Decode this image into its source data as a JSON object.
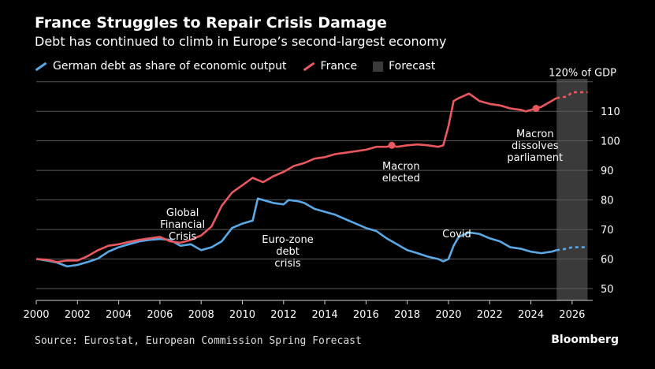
{
  "colors": {
    "background": "#000000",
    "germany": "#5aa9e6",
    "france": "#e8585e",
    "forecast": "#3a3a3a",
    "grid": "#5a5a5a",
    "text": "#ffffff"
  },
  "brand": "Bloomberg",
  "source": "Source: Eurostat, European Commission Spring Forecast",
  "chart_data": {
    "type": "line",
    "title": "France Struggles to Repair Crisis Damage",
    "subtitle": "Debt has continued to climb in Europe’s second-largest economy",
    "xlabel": "",
    "ylabel": "",
    "xlim": [
      2000,
      2027
    ],
    "ylim": [
      46,
      121
    ],
    "y_ticks": [
      50,
      60,
      70,
      80,
      90,
      100,
      110
    ],
    "x_ticks": [
      2000,
      2002,
      2004,
      2006,
      2008,
      2010,
      2012,
      2014,
      2016,
      2018,
      2020,
      2022,
      2024,
      2026
    ],
    "y_reference": {
      "value": 120,
      "label": "120% of GDP"
    },
    "grid": true,
    "legend_position": "top-left",
    "forecast_region": {
      "label": "Forecast",
      "start": 2025.25,
      "end": 2026.75
    },
    "series": [
      {
        "name": "German debt as share of economic output",
        "color_key": "germany",
        "values": [
          [
            2000.0,
            60.0
          ],
          [
            2000.5,
            59.5
          ],
          [
            2001.0,
            58.8
          ],
          [
            2001.5,
            57.5
          ],
          [
            2002.0,
            58.0
          ],
          [
            2002.5,
            59.0
          ],
          [
            2003.0,
            60.2
          ],
          [
            2003.5,
            62.5
          ],
          [
            2004.0,
            64.0
          ],
          [
            2004.5,
            65.0
          ],
          [
            2005.0,
            66.0
          ],
          [
            2005.5,
            66.5
          ],
          [
            2006.0,
            66.8
          ],
          [
            2006.5,
            66.5
          ],
          [
            2007.0,
            64.5
          ],
          [
            2007.5,
            65.0
          ],
          [
            2008.0,
            63.0
          ],
          [
            2008.5,
            64.0
          ],
          [
            2009.0,
            66.0
          ],
          [
            2009.5,
            70.5
          ],
          [
            2010.0,
            72.0
          ],
          [
            2010.5,
            73.0
          ],
          [
            2010.75,
            80.5
          ],
          [
            2011.0,
            80.0
          ],
          [
            2011.5,
            79.0
          ],
          [
            2012.0,
            78.5
          ],
          [
            2012.25,
            80.0
          ],
          [
            2012.75,
            79.5
          ],
          [
            2013.0,
            79.0
          ],
          [
            2013.5,
            77.0
          ],
          [
            2014.0,
            76.0
          ],
          [
            2014.5,
            75.0
          ],
          [
            2015.0,
            73.5
          ],
          [
            2015.5,
            72.0
          ],
          [
            2016.0,
            70.5
          ],
          [
            2016.5,
            69.5
          ],
          [
            2017.0,
            67.0
          ],
          [
            2017.5,
            65.0
          ],
          [
            2018.0,
            63.0
          ],
          [
            2018.5,
            62.0
          ],
          [
            2019.0,
            60.8
          ],
          [
            2019.5,
            60.0
          ],
          [
            2019.75,
            59.2
          ],
          [
            2020.0,
            60.0
          ],
          [
            2020.25,
            64.5
          ],
          [
            2020.5,
            67.5
          ],
          [
            2021.0,
            69.0
          ],
          [
            2021.5,
            68.5
          ],
          [
            2022.0,
            67.0
          ],
          [
            2022.5,
            66.0
          ],
          [
            2023.0,
            64.0
          ],
          [
            2023.5,
            63.5
          ],
          [
            2024.0,
            62.5
          ],
          [
            2024.5,
            62.0
          ],
          [
            2025.0,
            62.5
          ],
          [
            2025.25,
            63.0
          ]
        ],
        "forecast": [
          [
            2025.25,
            63.0
          ],
          [
            2025.75,
            63.5
          ],
          [
            2026.0,
            64.0
          ],
          [
            2026.75,
            64.0
          ]
        ]
      },
      {
        "name": "France",
        "color_key": "france",
        "values": [
          [
            2000.0,
            60.0
          ],
          [
            2000.5,
            59.8
          ],
          [
            2001.0,
            59.0
          ],
          [
            2001.5,
            59.5
          ],
          [
            2002.0,
            59.5
          ],
          [
            2002.5,
            61.0
          ],
          [
            2003.0,
            63.0
          ],
          [
            2003.5,
            64.5
          ],
          [
            2004.0,
            65.0
          ],
          [
            2004.5,
            65.8
          ],
          [
            2005.0,
            66.5
          ],
          [
            2005.5,
            67.0
          ],
          [
            2006.0,
            67.5
          ],
          [
            2006.5,
            66.0
          ],
          [
            2007.0,
            65.5
          ],
          [
            2007.5,
            66.5
          ],
          [
            2008.0,
            68.0
          ],
          [
            2008.5,
            71.0
          ],
          [
            2009.0,
            78.0
          ],
          [
            2009.5,
            82.5
          ],
          [
            2010.0,
            85.0
          ],
          [
            2010.5,
            87.5
          ],
          [
            2011.0,
            86.0
          ],
          [
            2011.5,
            88.0
          ],
          [
            2012.0,
            89.5
          ],
          [
            2012.5,
            91.5
          ],
          [
            2013.0,
            92.5
          ],
          [
            2013.5,
            94.0
          ],
          [
            2014.0,
            94.5
          ],
          [
            2014.5,
            95.5
          ],
          [
            2015.0,
            96.0
          ],
          [
            2015.5,
            96.5
          ],
          [
            2016.0,
            97.0
          ],
          [
            2016.5,
            98.0
          ],
          [
            2017.0,
            98.0
          ],
          [
            2017.25,
            98.5
          ],
          [
            2017.5,
            98.0
          ],
          [
            2018.0,
            98.5
          ],
          [
            2018.5,
            98.8
          ],
          [
            2019.0,
            98.5
          ],
          [
            2019.5,
            98.0
          ],
          [
            2019.75,
            98.5
          ],
          [
            2020.0,
            105.0
          ],
          [
            2020.25,
            113.5
          ],
          [
            2020.5,
            114.5
          ],
          [
            2021.0,
            116.0
          ],
          [
            2021.5,
            113.5
          ],
          [
            2022.0,
            112.5
          ],
          [
            2022.5,
            112.0
          ],
          [
            2023.0,
            111.0
          ],
          [
            2023.5,
            110.5
          ],
          [
            2023.75,
            110.0
          ],
          [
            2024.25,
            111.0
          ],
          [
            2024.5,
            111.5
          ],
          [
            2025.0,
            113.5
          ],
          [
            2025.25,
            114.5
          ]
        ],
        "forecast": [
          [
            2025.25,
            114.5
          ],
          [
            2025.75,
            115.0
          ],
          [
            2026.0,
            116.5
          ],
          [
            2026.75,
            116.5
          ]
        ]
      }
    ],
    "markers": [
      {
        "series": "France",
        "x": 2017.25,
        "y": 98.5
      },
      {
        "series": "France",
        "x": 2024.25,
        "y": 111.0
      }
    ],
    "annotations": [
      {
        "id": "gfc",
        "lines": [
          "Global",
          "Financial",
          "Crisis"
        ]
      },
      {
        "id": "ezc",
        "lines": [
          "Euro-zone",
          "debt",
          "crisis"
        ]
      },
      {
        "id": "covid",
        "lines": [
          "Covid"
        ]
      },
      {
        "id": "macron-elected",
        "lines": [
          "Macron",
          "elected"
        ]
      },
      {
        "id": "macron-dissolves",
        "lines": [
          "Macron",
          "dissolves",
          "parliament"
        ]
      }
    ]
  }
}
